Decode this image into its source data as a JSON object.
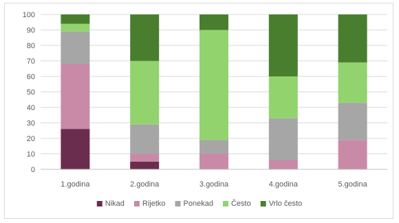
{
  "chart_data": {
    "type": "bar",
    "stacked": true,
    "title": "",
    "xlabel": "",
    "ylabel": "",
    "ylim": [
      0,
      100
    ],
    "yticks": [
      0,
      10,
      20,
      30,
      40,
      50,
      60,
      70,
      80,
      90,
      100
    ],
    "grid": true,
    "legend_position": "bottom",
    "categories": [
      "1.godina",
      "2.godina",
      "3.godina",
      "4.godina",
      "5.godina"
    ],
    "series": [
      {
        "name": "Nikad",
        "color": "#6b2d4e",
        "values": [
          26,
          5,
          0,
          0,
          0
        ]
      },
      {
        "name": "Rijetko",
        "color": "#c98aa8",
        "values": [
          42,
          5,
          10,
          6,
          19
        ]
      },
      {
        "name": "Ponekad",
        "color": "#a6a6a6",
        "values": [
          21,
          19,
          9,
          27,
          24
        ]
      },
      {
        "name": "Često",
        "color": "#92d36e",
        "values": [
          5,
          41,
          71,
          27,
          26
        ]
      },
      {
        "name": "Vrlo često",
        "color": "#4a7e2f",
        "values": [
          6,
          30,
          10,
          40,
          31
        ]
      }
    ]
  }
}
